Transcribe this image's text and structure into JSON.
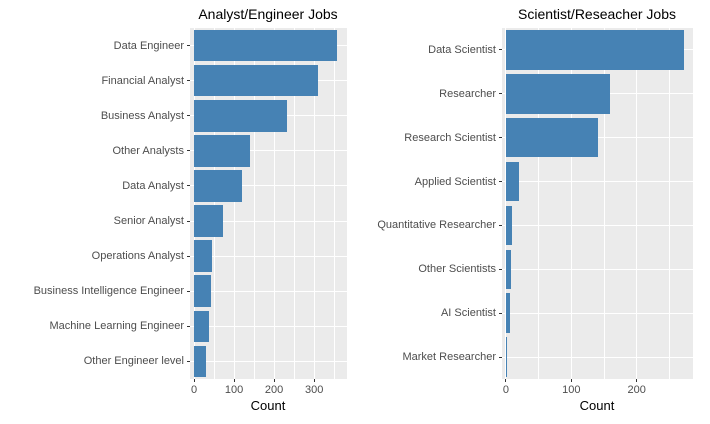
{
  "chart_data": [
    {
      "type": "bar",
      "orientation": "horizontal",
      "title": "Analyst/Engineer Jobs",
      "xlabel": "Count",
      "ylabel": "",
      "categories": [
        "Data Engineer",
        "Financial Analyst",
        "Business Analyst",
        "Other Analysts",
        "Data Analyst",
        "Senior Analyst",
        "Operations Analyst",
        "Business Intelligence Engineer",
        "Machine Learning Engineer",
        "Other Engineer level"
      ],
      "values": [
        357,
        310,
        232,
        140,
        121,
        72,
        46,
        43,
        38,
        31
      ],
      "x_ticks": [
        0,
        100,
        200,
        300
      ],
      "x_minor_step": 50,
      "xlim": [
        -10,
        382
      ],
      "grid": true,
      "legend": "none"
    },
    {
      "type": "bar",
      "orientation": "horizontal",
      "title": "Scientist/Reseacher Jobs",
      "xlabel": "Count",
      "ylabel": "",
      "categories": [
        "Data Scientist",
        "Researcher",
        "Research Scientist",
        "Applied Scientist",
        "Quantitative Researcher",
        "Other Scientists",
        "AI Scientist",
        "Market Researcher"
      ],
      "values": [
        272,
        159,
        141,
        20,
        9,
        8,
        6,
        2
      ],
      "x_ticks": [
        0,
        100,
        200
      ],
      "x_minor_step": 50,
      "xlim": [
        -6,
        286
      ],
      "grid": true,
      "legend": "none"
    }
  ],
  "theme": {
    "bar_color": "#4682B4",
    "panel_background": "#EBEBEB",
    "grid_color": "#FFFFFF",
    "tick_label_color": "#4D4D4D",
    "category_label_color": "#4D4D4D",
    "title_color": "#000000",
    "axis_title_color": "#000000",
    "tick_mark_color": "#333333",
    "page_background": "#FFFFFF"
  }
}
